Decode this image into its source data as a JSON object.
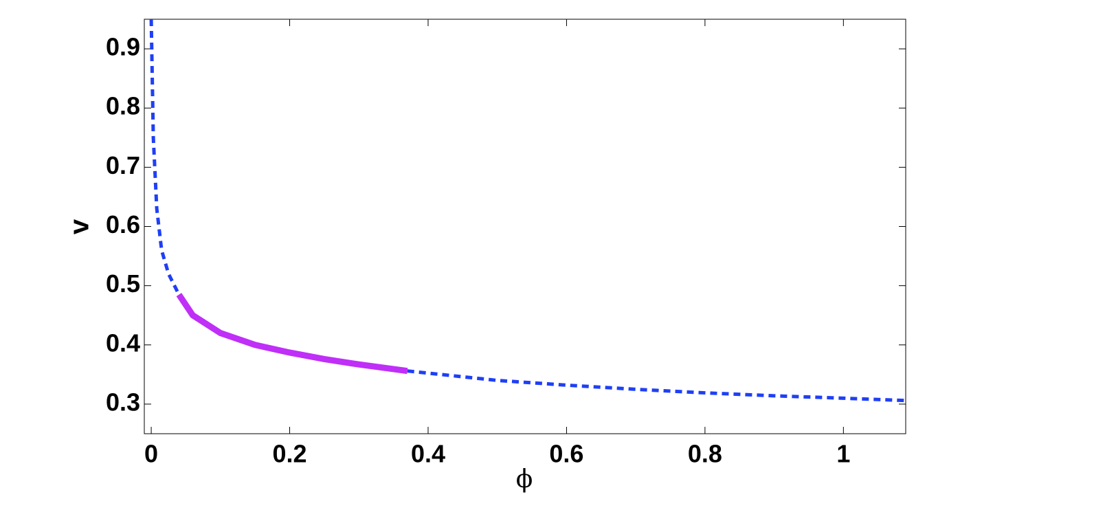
{
  "chart_data": {
    "type": "line",
    "x_label": "ϕ",
    "y_label": "v",
    "x": [
      0,
      0.003,
      0.008,
      0.015,
      0.025,
      0.04,
      0.06,
      0.1,
      0.15,
      0.2,
      0.25,
      0.3,
      0.37,
      0.5,
      0.6,
      0.7,
      0.8,
      0.9,
      1.0,
      1.09
    ],
    "series": [
      {
        "color": "#1f3ff5",
        "dashed": true,
        "width": 5,
        "values": [
          0.95,
          0.75,
          0.63,
          0.56,
          0.52,
          0.485,
          null,
          null,
          null,
          null,
          null,
          null,
          0.356,
          0.34,
          0.332,
          0.325,
          0.319,
          0.314,
          0.31,
          0.306
        ]
      },
      {
        "color": "#bf2ff7",
        "dashed": false,
        "width": 9,
        "values": [
          null,
          null,
          null,
          null,
          null,
          0.485,
          0.45,
          0.42,
          0.4,
          0.387,
          0.376,
          0.367,
          0.356,
          null,
          null,
          null,
          null,
          null,
          null,
          null
        ]
      }
    ],
    "xlim": [
      -0.01,
      1.09
    ],
    "ylim": [
      0.25,
      0.95
    ],
    "xticks": [
      0,
      0.2,
      0.4,
      0.6,
      0.8,
      1
    ],
    "yticks": [
      0.3,
      0.4,
      0.5,
      0.6,
      0.7,
      0.8,
      0.9
    ],
    "grid": false,
    "box": true
  }
}
